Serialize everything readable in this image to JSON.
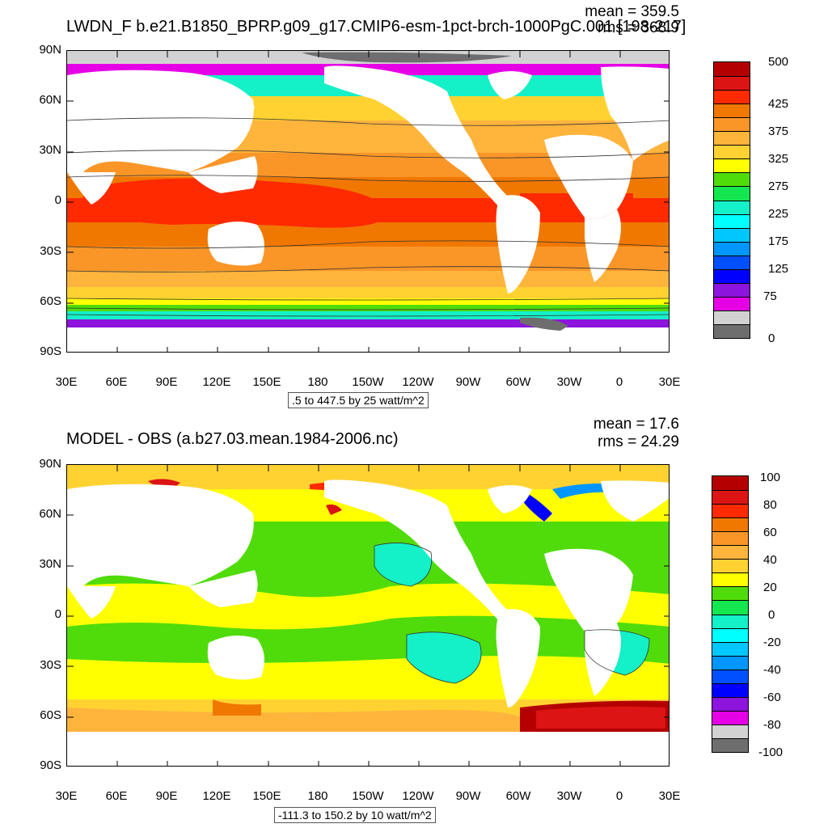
{
  "top_panel": {
    "title": "LWDN_F b.e21.B1850_BPRP.g09_g17.CMIP6-esm-1pct-brch-1000PgC.001 [198-217]",
    "mean_text": "mean = 359.5",
    "rms_text": "rms = 368.9",
    "range_text": ".5 to 447.5 by 25 watt/m^2",
    "lat_labels": [
      "90N",
      "60N",
      "30N",
      "0",
      "30S",
      "60S",
      "90S"
    ],
    "lon_labels": [
      "30E",
      "60E",
      "90E",
      "120E",
      "150E",
      "180",
      "150W",
      "120W",
      "90W",
      "60W",
      "30W",
      "0",
      "30E"
    ],
    "colorbar": {
      "labels": [
        "500",
        "425",
        "375",
        "325",
        "275",
        "225",
        "175",
        "125",
        "75",
        "0"
      ],
      "colors": [
        "#b40000",
        "#dc1414",
        "#ff2a00",
        "#f07800",
        "#fa9628",
        "#ffb43c",
        "#ffd232",
        "#ffff00",
        "#50dc0a",
        "#14e650",
        "#14f0c8",
        "#00ffff",
        "#00c8ff",
        "#0096ff",
        "#0050ff",
        "#0000ff",
        "#8c14dc",
        "#e600e6",
        "#d2d2d2",
        "#6e6e6e"
      ]
    }
  },
  "bottom_panel": {
    "title": "MODEL - OBS (a.b27.03.mean.1984-2006.nc)",
    "mean_text": "mean = 17.6",
    "rms_text": "rms = 24.29",
    "range_text": "-111.3 to 150.2 by 10 watt/m^2",
    "lat_labels": [
      "90N",
      "60N",
      "30N",
      "0",
      "30S",
      "60S",
      "90S"
    ],
    "lon_labels": [
      "30E",
      "60E",
      "90E",
      "120E",
      "150E",
      "180",
      "150W",
      "120W",
      "90W",
      "60W",
      "30W",
      "0",
      "30E"
    ],
    "colorbar": {
      "labels": [
        "100",
        "80",
        "60",
        "40",
        "20",
        "0",
        "-20",
        "-40",
        "-60",
        "-80",
        "-100"
      ],
      "colors": [
        "#b40000",
        "#dc1414",
        "#ff2a00",
        "#f07800",
        "#fa9628",
        "#ffb43c",
        "#ffd232",
        "#ffff00",
        "#50dc0a",
        "#14e650",
        "#14f0c8",
        "#00ffff",
        "#00c8ff",
        "#0096ff",
        "#0050ff",
        "#0000ff",
        "#8c14dc",
        "#e600e6",
        "#d2d2d2",
        "#6e6e6e"
      ]
    }
  }
}
